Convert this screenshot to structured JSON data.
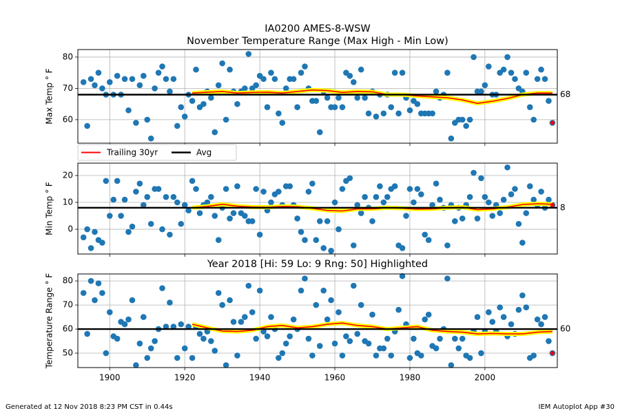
{
  "footer": {
    "left": "Generated at 12 Nov 2018 8:23 PM CST in 0.44s",
    "right": "IEM Autoplot App #30"
  },
  "chart_data": [
    {
      "type": "scatter",
      "title": "IA0200 AMES-8-WSW",
      "subtitle": "November Temperature Range (Max High - Min Low)",
      "ylabel": "Max Temp ° F",
      "xlim": [
        1891.5,
        2019.3
      ],
      "xticks": [
        1900,
        1920,
        1940,
        1960,
        1980,
        2000
      ],
      "xtick_labels": false,
      "ylim": [
        52.5,
        82.4
      ],
      "yticks": [
        60,
        70,
        80
      ],
      "grid": true,
      "legend": "below left",
      "x": [
        1893,
        1894,
        1895,
        1896,
        1897,
        1898,
        1899,
        1900,
        1901,
        1902,
        1903,
        1904,
        1905,
        1906,
        1907,
        1908,
        1909,
        1910,
        1911,
        1912,
        1913,
        1914,
        1915,
        1916,
        1917,
        1918,
        1919,
        1920,
        1921,
        1922,
        1923,
        1924,
        1925,
        1926,
        1927,
        1928,
        1929,
        1930,
        1931,
        1932,
        1933,
        1934,
        1935,
        1936,
        1937,
        1938,
        1939,
        1940,
        1941,
        1942,
        1943,
        1944,
        1945,
        1946,
        1947,
        1948,
        1949,
        1950,
        1951,
        1952,
        1953,
        1954,
        1955,
        1956,
        1957,
        1958,
        1959,
        1960,
        1961,
        1962,
        1963,
        1964,
        1965,
        1966,
        1967,
        1968,
        1969,
        1970,
        1971,
        1972,
        1973,
        1974,
        1975,
        1976,
        1977,
        1978,
        1979,
        1980,
        1981,
        1982,
        1983,
        1984,
        1985,
        1986,
        1987,
        1988,
        1989,
        1990,
        1991,
        1992,
        1993,
        1994,
        1995,
        1996,
        1997,
        1998,
        1999,
        2000,
        2001,
        2002,
        2003,
        2004,
        2005,
        2006,
        2007,
        2008,
        2009,
        2010,
        2011,
        2012,
        2013,
        2014,
        2015,
        2016,
        2017,
        2018
      ],
      "values": [
        72,
        58,
        73,
        71,
        75,
        70,
        68,
        72,
        68,
        74,
        68,
        73,
        63,
        73,
        59,
        71,
        74,
        60,
        54,
        70,
        75,
        77,
        73,
        69,
        73,
        58,
        64,
        61,
        68,
        66,
        76,
        64,
        65,
        69,
        67,
        56,
        71,
        78,
        60,
        76,
        69,
        65,
        69,
        70,
        81,
        70,
        71,
        74,
        73,
        64,
        75,
        73,
        62,
        59,
        70,
        73,
        73,
        64,
        75,
        77,
        70,
        66,
        66,
        56,
        69,
        67,
        64,
        64,
        67,
        64,
        75,
        74,
        72,
        67,
        76,
        67,
        62,
        69,
        61,
        68,
        62,
        68,
        64,
        75,
        62,
        75,
        67,
        63,
        66,
        65,
        62,
        62,
        62,
        62,
        69,
        67,
        68,
        75,
        54,
        59,
        60,
        60,
        58,
        60,
        80,
        69,
        69,
        71,
        77,
        68,
        68,
        75,
        76,
        80,
        75,
        73,
        70,
        69,
        75,
        64,
        60,
        73,
        76,
        73,
        66,
        59
      ],
      "color": "#1f77b4",
      "highlight": {
        "x": 2018,
        "color": "#ff0000"
      },
      "trail": {
        "name": "Trailing 30yr",
        "color": "#ff0000",
        "halo": "#ffff00",
        "x": [
          1922,
          1926,
          1930,
          1934,
          1938,
          1942,
          1946,
          1950,
          1954,
          1958,
          1962,
          1966,
          1970,
          1974,
          1978,
          1982,
          1986,
          1990,
          1994,
          1998,
          2002,
          2006,
          2010,
          2014,
          2018
        ],
        "values": [
          68.5,
          68.8,
          69,
          68.5,
          68.7,
          68.8,
          68.5,
          69,
          69.5,
          69.3,
          68.7,
          69,
          68.9,
          68,
          68,
          67.6,
          67.3,
          67,
          66.3,
          65.2,
          65.9,
          66.8,
          68,
          68.5,
          68.5
        ]
      },
      "avg": {
        "name": "Avg",
        "color": "#000000",
        "value": 68
      }
    },
    {
      "type": "scatter",
      "ylabel": "Min Temp ° F",
      "xlim": [
        1891.5,
        2019.3
      ],
      "xticks": [
        1900,
        1920,
        1940,
        1960,
        1980,
        2000
      ],
      "xtick_labels": false,
      "ylim": [
        -9.2,
        24.6
      ],
      "yticks": [
        0,
        10,
        20
      ],
      "grid": true,
      "x": [
        1893,
        1894,
        1895,
        1896,
        1897,
        1898,
        1899,
        1900,
        1901,
        1902,
        1903,
        1904,
        1905,
        1906,
        1907,
        1908,
        1909,
        1910,
        1911,
        1912,
        1913,
        1914,
        1915,
        1916,
        1917,
        1918,
        1919,
        1920,
        1921,
        1922,
        1923,
        1924,
        1925,
        1926,
        1927,
        1928,
        1929,
        1930,
        1931,
        1932,
        1933,
        1934,
        1935,
        1936,
        1937,
        1938,
        1939,
        1940,
        1941,
        1942,
        1943,
        1944,
        1945,
        1946,
        1947,
        1948,
        1949,
        1950,
        1951,
        1952,
        1953,
        1954,
        1955,
        1956,
        1957,
        1958,
        1959,
        1960,
        1961,
        1962,
        1963,
        1964,
        1965,
        1966,
        1967,
        1968,
        1969,
        1970,
        1971,
        1972,
        1973,
        1974,
        1975,
        1976,
        1977,
        1978,
        1979,
        1980,
        1981,
        1982,
        1983,
        1984,
        1985,
        1986,
        1987,
        1988,
        1989,
        1990,
        1991,
        1992,
        1993,
        1994,
        1995,
        1996,
        1997,
        1998,
        1999,
        2000,
        2001,
        2002,
        2003,
        2004,
        2005,
        2006,
        2007,
        2008,
        2009,
        2010,
        2011,
        2012,
        2013,
        2014,
        2015,
        2016,
        2017,
        2018
      ],
      "values": [
        -3,
        0,
        -7,
        -1,
        -4,
        -5,
        18,
        5,
        11,
        18,
        5,
        11,
        -1,
        1,
        14,
        17,
        9,
        12,
        2,
        15,
        15,
        0,
        12,
        -2,
        12,
        10,
        2,
        9,
        7,
        18,
        15,
        6,
        9,
        10,
        12,
        5,
        -4,
        8,
        15,
        4,
        6,
        16,
        6,
        5,
        3,
        3,
        15,
        -2,
        14,
        7,
        10,
        13,
        14,
        9,
        16,
        16,
        9,
        4,
        -1,
        -4,
        14,
        17,
        -4,
        3,
        -7,
        3,
        -8,
        10,
        0,
        15,
        18,
        19,
        -6,
        9,
        6,
        12,
        8,
        3,
        12,
        16,
        10,
        12,
        15,
        16,
        -6,
        -7,
        5,
        15,
        10,
        15,
        13,
        -2,
        -4,
        9,
        17,
        11,
        8,
        -6,
        9,
        3,
        8,
        4,
        9,
        12,
        21,
        4,
        19,
        12,
        10,
        5,
        9,
        6,
        11,
        23,
        13,
        15,
        2,
        -5,
        6,
        16,
        11,
        9,
        14,
        8,
        11,
        9
      ],
      "color": "#1f77b4",
      "highlight": {
        "x": 2018,
        "color": "#ff0000"
      },
      "trail": {
        "color": "#ff0000",
        "halo": "#ffff00",
        "x": [
          1922,
          1926,
          1930,
          1934,
          1938,
          1942,
          1946,
          1950,
          1954,
          1958,
          1962,
          1966,
          1970,
          1974,
          1978,
          1982,
          1986,
          1990,
          1994,
          1998,
          2002,
          2006,
          2010,
          2014,
          2018
        ],
        "values": [
          8,
          8.5,
          9.3,
          8.6,
          8.3,
          8.2,
          8.5,
          8.4,
          7.8,
          7,
          6.8,
          7.6,
          7.6,
          8,
          7.8,
          7.5,
          7.6,
          8,
          8.2,
          7.3,
          7.6,
          8.2,
          9.2,
          9.5,
          9.3
        ]
      },
      "avg": {
        "color": "#000000",
        "value": 8
      }
    },
    {
      "type": "scatter",
      "title": "Year 2018 [Hi: 59 Lo: 9 Rng: 50] Highlighted",
      "title_color": "#ff0000",
      "ylabel": "Temperature Range ° F",
      "xlim": [
        1891.5,
        2019.3
      ],
      "xticks": [
        1900,
        1920,
        1940,
        1960,
        1980,
        2000
      ],
      "xtick_labels": true,
      "ylim": [
        44,
        82.9
      ],
      "yticks": [
        50,
        60,
        70,
        80
      ],
      "grid": true,
      "x": [
        1893,
        1894,
        1895,
        1896,
        1897,
        1898,
        1899,
        1900,
        1901,
        1902,
        1903,
        1904,
        1905,
        1906,
        1907,
        1908,
        1909,
        1910,
        1911,
        1912,
        1913,
        1914,
        1915,
        1916,
        1917,
        1918,
        1919,
        1920,
        1921,
        1922,
        1923,
        1924,
        1925,
        1926,
        1927,
        1928,
        1929,
        1930,
        1931,
        1932,
        1933,
        1934,
        1935,
        1936,
        1937,
        1938,
        1939,
        1940,
        1941,
        1942,
        1943,
        1944,
        1945,
        1946,
        1947,
        1948,
        1949,
        1950,
        1951,
        1952,
        1953,
        1954,
        1955,
        1956,
        1957,
        1958,
        1959,
        1960,
        1961,
        1962,
        1963,
        1964,
        1965,
        1966,
        1967,
        1968,
        1969,
        1970,
        1971,
        1972,
        1973,
        1974,
        1975,
        1976,
        1977,
        1978,
        1979,
        1980,
        1981,
        1982,
        1983,
        1984,
        1985,
        1986,
        1987,
        1988,
        1989,
        1990,
        1991,
        1992,
        1993,
        1994,
        1995,
        1996,
        1997,
        1998,
        1999,
        2000,
        2001,
        2002,
        2003,
        2004,
        2005,
        2006,
        2007,
        2008,
        2009,
        2010,
        2011,
        2012,
        2013,
        2014,
        2015,
        2016,
        2017,
        2018
      ],
      "values": [
        75,
        58,
        80,
        72,
        79,
        75,
        50,
        67,
        57,
        56,
        63,
        62,
        64,
        72,
        45,
        54,
        65,
        48,
        52,
        55,
        60,
        77,
        61,
        71,
        61,
        48,
        62,
        52,
        61,
        48,
        61,
        58,
        56,
        59,
        55,
        51,
        75,
        70,
        45,
        72,
        63,
        49,
        63,
        65,
        78,
        67,
        56,
        76,
        59,
        57,
        65,
        60,
        48,
        50,
        54,
        57,
        64,
        60,
        76,
        81,
        56,
        49,
        70,
        53,
        76,
        64,
        72,
        54,
        67,
        49,
        57,
        55,
        78,
        58,
        70,
        55,
        54,
        66,
        49,
        52,
        52,
        56,
        49,
        59,
        68,
        82,
        62,
        48,
        56,
        50,
        49,
        64,
        66,
        53,
        52,
        56,
        60,
        81,
        45,
        56,
        52,
        56,
        49,
        48,
        59,
        65,
        50,
        59,
        67,
        63,
        59,
        69,
        65,
        57,
        62,
        58,
        68,
        74,
        69,
        48,
        49,
        64,
        62,
        65,
        55,
        50
      ],
      "color": "#1f77b4",
      "highlight": {
        "x": 2018,
        "color": "#ff0000"
      },
      "trail": {
        "color": "#ff0000",
        "halo": "#ffff00",
        "x": [
          1922,
          1926,
          1930,
          1934,
          1938,
          1942,
          1946,
          1950,
          1954,
          1958,
          1962,
          1966,
          1970,
          1974,
          1978,
          1982,
          1986,
          1990,
          1994,
          1998,
          2002,
          2006,
          2010,
          2014,
          2018
        ],
        "values": [
          62,
          60.5,
          59.2,
          59,
          59.5,
          61,
          61.5,
          60.5,
          61,
          62,
          62.5,
          61.5,
          61,
          60,
          60.5,
          61,
          59.5,
          59,
          58.7,
          58,
          58.2,
          58,
          58,
          58.7,
          59
        ]
      },
      "avg": {
        "color": "#000000",
        "value": 60
      }
    }
  ]
}
